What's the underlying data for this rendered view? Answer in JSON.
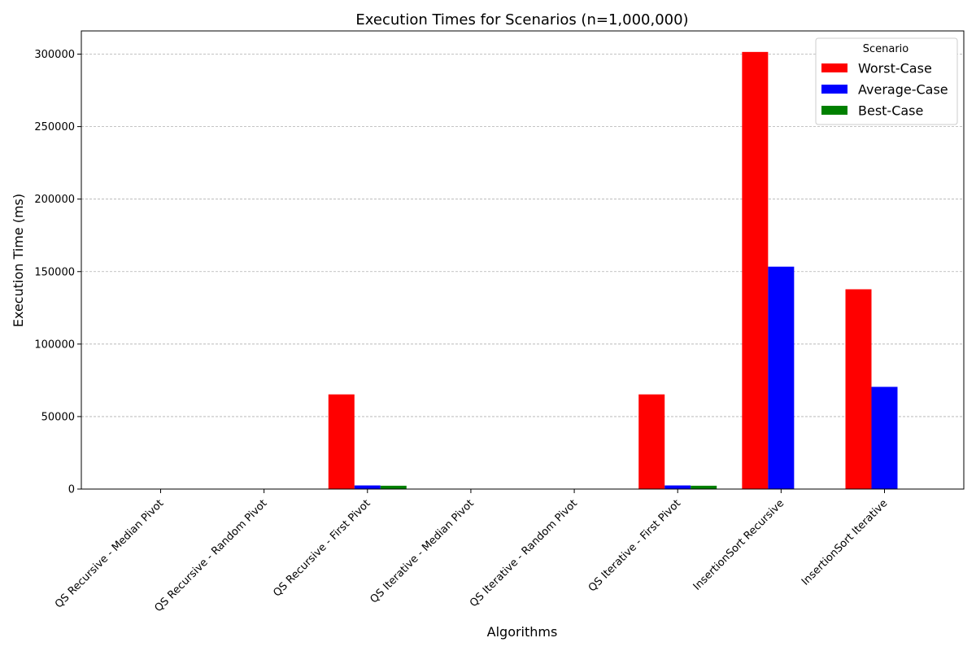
{
  "chart_data": {
    "type": "bar",
    "title": "Execution Times for Scenarios (n=1,000,000)",
    "xlabel": "Algorithms",
    "ylabel": "Execution Time (ms)",
    "ylim": [
      0,
      316000
    ],
    "yticks": [
      0,
      50000,
      100000,
      150000,
      200000,
      250000,
      300000
    ],
    "grid": "horizontal dashed",
    "legend_title": "Scenario",
    "legend_position": "top-right",
    "categories": [
      "QS Recursive - Median Pivot",
      "QS Recursive - Random Pivot",
      "QS Recursive - First Pivot",
      "QS Iterative - Median Pivot",
      "QS Iterative - Random Pivot",
      "QS Iterative - First Pivot",
      "InsertionSort Recursive",
      "InsertionSort Iterative"
    ],
    "series": [
      {
        "name": "Worst-Case",
        "color": "#ff0000",
        "values": [
          60,
          60,
          65300,
          60,
          60,
          65300,
          301500,
          137800
        ]
      },
      {
        "name": "Average-Case",
        "color": "#0000ff",
        "values": [
          80,
          80,
          2500,
          80,
          80,
          2500,
          153400,
          70500
        ]
      },
      {
        "name": "Best-Case",
        "color": "#008000",
        "values": [
          40,
          40,
          2300,
          40,
          40,
          2300,
          30,
          30
        ]
      }
    ]
  }
}
